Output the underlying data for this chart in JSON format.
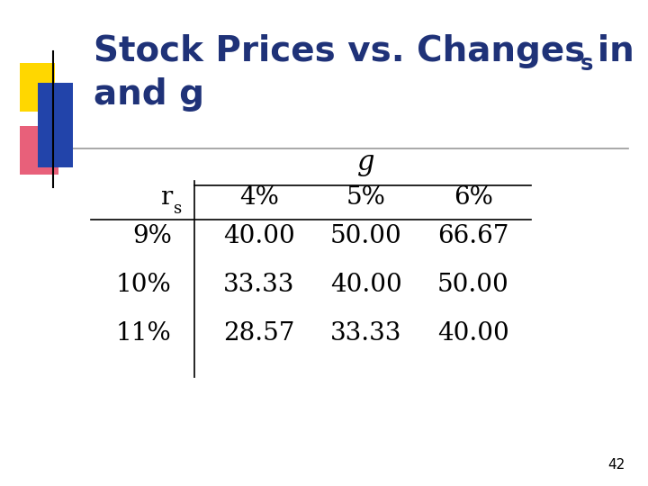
{
  "title_line1": "Stock Prices vs. Changes in r",
  "title_subscript_s": "s",
  "title_line2": "and g",
  "title_color": "#1F3278",
  "background_color": "#FFFFFF",
  "page_number": "42",
  "col_header_g": "g",
  "col_headers": [
    "4%",
    "5%",
    "6%"
  ],
  "row_header_label": "r",
  "row_header_sub": "s",
  "row_headers": [
    "9%",
    "10%",
    "11%"
  ],
  "table_data": [
    [
      "40.00",
      "50.00",
      "66.67"
    ],
    [
      "33.33",
      "40.00",
      "50.00"
    ],
    [
      "28.57",
      "33.33",
      "40.00"
    ]
  ],
  "deco_yellow": "#FFD700",
  "deco_red": "#E8607A",
  "deco_blue": "#2244AA",
  "separator_line_color": "#999999",
  "table_line_color": "#000000",
  "title_fontsize": 28,
  "table_fontsize": 20
}
